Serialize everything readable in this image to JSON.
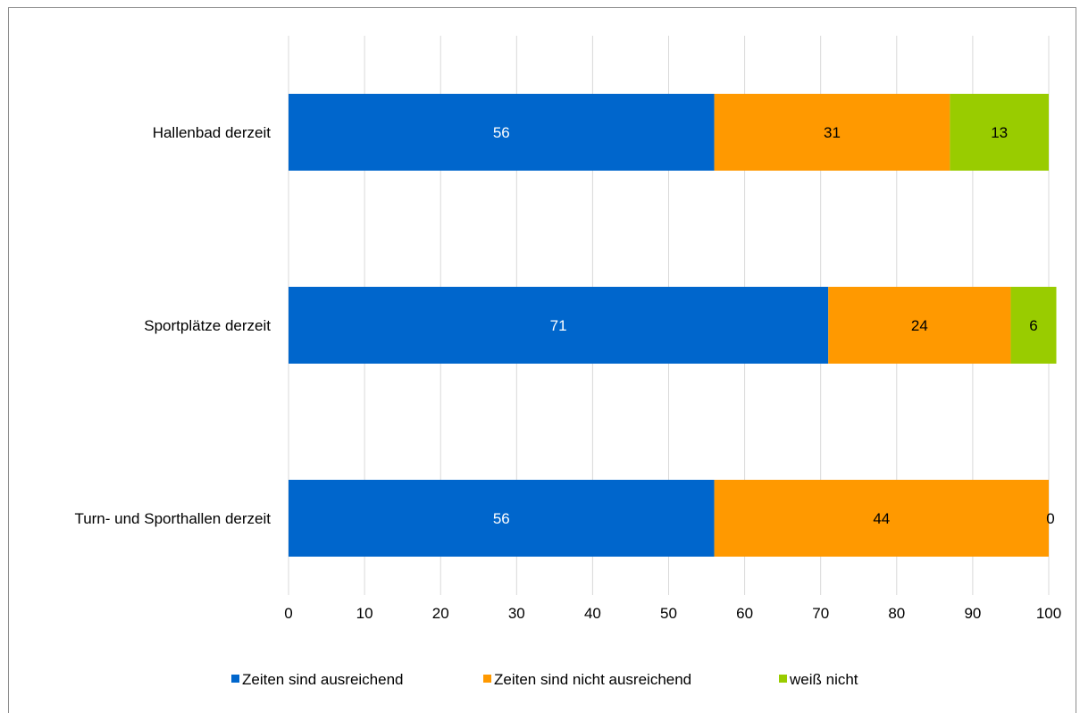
{
  "chart_data": {
    "type": "bar",
    "orientation": "horizontal",
    "stacked": true,
    "categories": [
      "Hallenbad derzeit",
      "Sportplätze derzeit",
      "Turn- und Sporthallen derzeit"
    ],
    "series": [
      {
        "name": "Zeiten sind ausreichend",
        "values": [
          56,
          71,
          56
        ],
        "color": "#0066CC",
        "label_color": "#ffffff"
      },
      {
        "name": "Zeiten sind nicht ausreichend",
        "values": [
          31,
          24,
          44
        ],
        "color": "#FF9900",
        "label_color": "#000000"
      },
      {
        "name": "weiß nicht",
        "values": [
          13,
          6,
          0
        ],
        "color": "#99CC00",
        "label_color": "#000000"
      }
    ],
    "xlim": [
      0,
      100
    ],
    "xticks": [
      0,
      10,
      20,
      30,
      40,
      50,
      60,
      70,
      80,
      90,
      100
    ],
    "grid": true,
    "legend_position": "bottom"
  }
}
